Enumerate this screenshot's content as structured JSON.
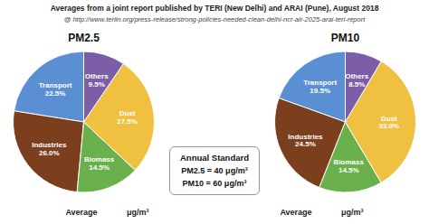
{
  "title": "Averages from a joint report published by TERI (New Delhi) and ARAI (Pune), August 2018",
  "subtitle": "@ http://www.teriin.org/press-release/strong-policies-needed-clean-delhi-ncr-air-2025-arai-teri-report",
  "chart_data": [
    {
      "type": "pie",
      "title": "PM2.5",
      "categories": [
        "Transport",
        "Industries",
        "Biomass",
        "Dust",
        "Others"
      ],
      "values": [
        22.5,
        26.0,
        14.5,
        27.5,
        9.5
      ],
      "value_labels": [
        "22.5%",
        "26.0%",
        "14.5%",
        "27.5%",
        "9.5%"
      ],
      "colors": [
        "#5b8fd4",
        "#7b3f1e",
        "#6ab04c",
        "#f0c040",
        "#7b5ea7"
      ]
    },
    {
      "type": "pie",
      "title": "PM10",
      "categories": [
        "Transport",
        "Industries",
        "Biomass",
        "Dust",
        "Others"
      ],
      "values": [
        19.5,
        24.5,
        14.5,
        33.0,
        8.5
      ],
      "value_labels": [
        "19.5%",
        "24.5%",
        "14.5%",
        "33.0%",
        "8.5%"
      ],
      "colors": [
        "#5b8fd4",
        "#7b3f1e",
        "#6ab04c",
        "#f0c040",
        "#7b5ea7"
      ]
    }
  ],
  "annotations": [
    "Annual Standard",
    "PM2.5 = 40 μg/m³",
    "PM10 = 60 μg/m³"
  ],
  "footer": [
    "Average             μg/m³",
    "Average             μg/m³"
  ]
}
